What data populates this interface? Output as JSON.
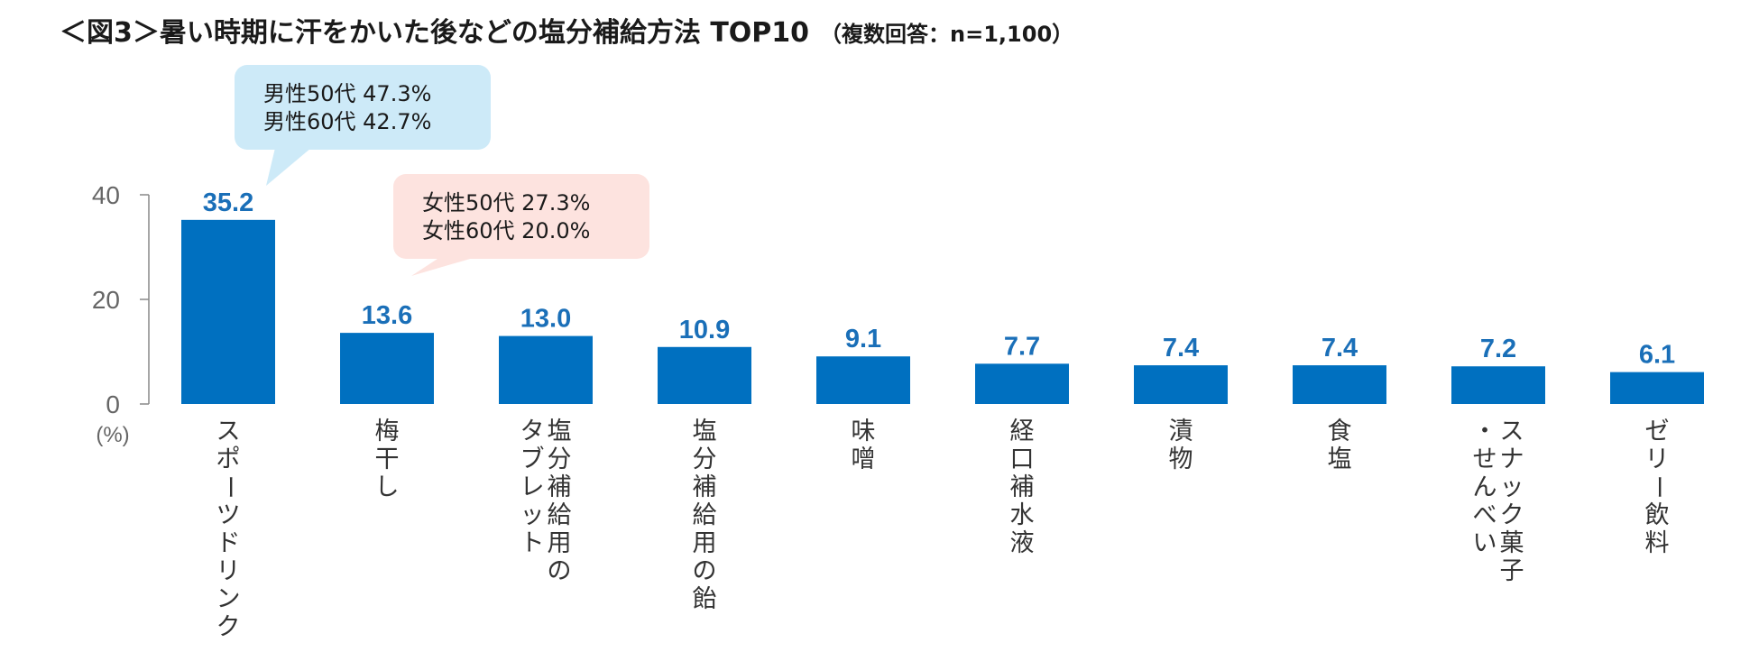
{
  "title": {
    "main": "＜図3＞暑い時期に汗をかいた後などの塩分補給方法 TOP10",
    "sub": "（複数回答：n=1,100）"
  },
  "chart_data": {
    "type": "bar",
    "unit_label": "(%)",
    "ylim": [
      0,
      40
    ],
    "yticks": [
      "0",
      "20",
      "40"
    ],
    "grid": false,
    "bar_color": "#0070c0",
    "label_color": "#1a6fb8",
    "categories": [
      [
        "スポーツドリンク"
      ],
      [
        "梅干し"
      ],
      [
        "塩分補給用の",
        "タブレット"
      ],
      [
        "塩分補給用の飴"
      ],
      [
        "味噌"
      ],
      [
        "経口補水液"
      ],
      [
        "漬物"
      ],
      [
        "食塩"
      ],
      [
        "スナック菓子",
        "・せんべい"
      ],
      [
        "ゼリー飲料"
      ]
    ],
    "values": [
      35.2,
      13.6,
      13.0,
      10.9,
      9.1,
      7.7,
      7.4,
      7.4,
      7.2,
      6.1
    ],
    "value_labels": [
      "35.2",
      "13.6",
      "13.0",
      "10.9",
      "9.1",
      "7.7",
      "7.4",
      "7.4",
      "7.2",
      "6.1"
    ]
  },
  "callouts": {
    "male": {
      "color": "#cdeaf8",
      "lines": [
        "男性50代 47.3%",
        "男性60代 42.7%"
      ]
    },
    "female": {
      "color": "#fde3df",
      "lines": [
        "女性50代 27.3%",
        "女性60代 20.0%"
      ]
    }
  }
}
